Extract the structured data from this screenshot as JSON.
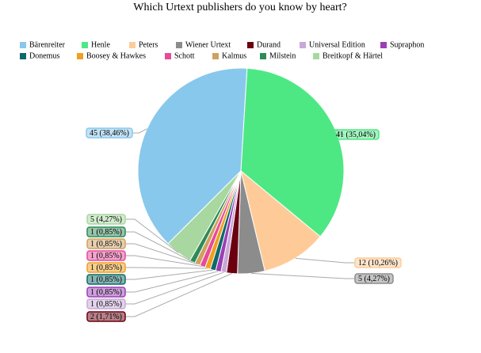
{
  "chart_data": {
    "type": "pie",
    "title": "Which Urtext publishers do you know by heart?",
    "categories": [
      "Bärenreiter",
      "Henle",
      "Peters",
      "Wiener Urtext",
      "Durand",
      "Universal Edition",
      "Supraphon",
      "Donemus",
      "Boosey & Hawkes",
      "Schott",
      "Kalmus",
      "Milstein",
      "Breitkopf & Härtel"
    ],
    "values": [
      45,
      41,
      12,
      5,
      2,
      1,
      1,
      1,
      1,
      1,
      1,
      1,
      5
    ],
    "value_labels": [
      "45 (38,46%)",
      "41 (35,04%)",
      "12 (10,26%)",
      "5 (4,27%)",
      "2 (1,71%)",
      "1 (0,85%)",
      "1 (0,85%)",
      "1 (0,85%)",
      "1 (0,85%)",
      "1 (0,85%)",
      "1 (0,85%)",
      "1 (0,85%)",
      "5 (4,27%)"
    ],
    "colors": [
      "#88c8ec",
      "#4de884",
      "#fecb98",
      "#8c8c8c",
      "#6b0010",
      "#c8a8d8",
      "#9b3fb5",
      "#0e6a6a",
      "#f0a020",
      "#e84a9a",
      "#d0a060",
      "#2e8b57",
      "#a8d8a0"
    ]
  }
}
